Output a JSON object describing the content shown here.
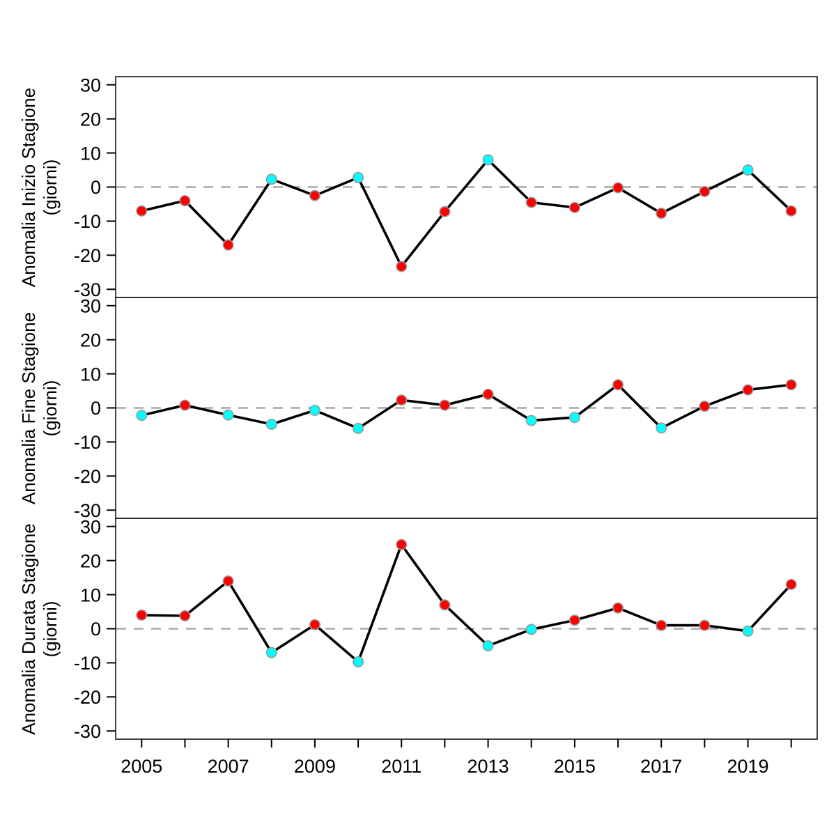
{
  "chart_data": {
    "type": "line",
    "title": "",
    "x": [
      2005,
      2006,
      2007,
      2008,
      2009,
      2010,
      2011,
      2012,
      2013,
      2014,
      2015,
      2016,
      2017,
      2018,
      2019,
      2020
    ],
    "x_axis": {
      "tick_years": [
        2005,
        2006,
        2007,
        2008,
        2009,
        2010,
        2011,
        2012,
        2013,
        2014,
        2015,
        2016,
        2017,
        2018,
        2019,
        2020
      ],
      "labeled_ticks": [
        {
          "year": 2005,
          "label": "2005"
        },
        {
          "year": 2007,
          "label": "2007"
        },
        {
          "year": 2009,
          "label": "2009"
        },
        {
          "year": 2011,
          "label": "2011"
        },
        {
          "year": 2013,
          "label": "2013"
        },
        {
          "year": 2015,
          "label": "2015"
        },
        {
          "year": 2017,
          "label": "2017"
        },
        {
          "year": 2019,
          "label": "2019"
        }
      ]
    },
    "y_axis": {
      "lim": [
        -30,
        30
      ],
      "ticks": [
        30,
        20,
        10,
        0,
        -10,
        -20,
        -30
      ],
      "tick_labels": [
        "30",
        "20",
        "10",
        "0",
        "-10",
        "-20",
        "-30"
      ]
    },
    "zero_line": {
      "style": "dashed",
      "value": 0
    },
    "legend": "none",
    "grid": "off",
    "palette": {
      "red": "#FF0000",
      "cyan": "#00FFFF",
      "line": "#000000",
      "marker_border": "#999999",
      "zero_line": "#A8A8A8",
      "axis": "#222222",
      "text": "#000000",
      "background": "#FFFFFF"
    },
    "panels": [
      {
        "ylabel": "Anomalia Inizio Stagione",
        "ylabel_sub": "(giorni)",
        "values": [
          -7,
          -4,
          -17,
          2.3,
          -2.5,
          2.8,
          -23.3,
          -7.2,
          8,
          -4.5,
          -6,
          -0.2,
          -7.7,
          -1.3,
          5,
          -7
        ],
        "colors": [
          "red",
          "red",
          "red",
          "cyan",
          "red",
          "cyan",
          "red",
          "red",
          "cyan",
          "red",
          "red",
          "red",
          "red",
          "red",
          "cyan",
          "red"
        ]
      },
      {
        "ylabel": "Anomalia Fine Stagione",
        "ylabel_sub": "(giorni)",
        "values": [
          -2.2,
          0.8,
          -2.1,
          -4.8,
          -0.7,
          -6,
          2.3,
          0.8,
          4,
          -3.7,
          -2.8,
          6.8,
          -5.9,
          0.5,
          5.3,
          6.8
        ],
        "colors": [
          "cyan",
          "red",
          "cyan",
          "cyan",
          "cyan",
          "cyan",
          "red",
          "red",
          "red",
          "cyan",
          "cyan",
          "red",
          "cyan",
          "red",
          "red",
          "red"
        ]
      },
      {
        "ylabel": "Anomalia Durata Stagione",
        "ylabel_sub": "(giorni)",
        "values": [
          4,
          3.8,
          14,
          -7,
          1.2,
          -9.7,
          24.7,
          7,
          -5,
          -0.2,
          2.5,
          6.1,
          1,
          1,
          -0.7,
          13
        ],
        "colors": [
          "red",
          "red",
          "red",
          "cyan",
          "red",
          "cyan",
          "red",
          "red",
          "cyan",
          "cyan",
          "red",
          "red",
          "red",
          "red",
          "cyan",
          "red"
        ]
      }
    ]
  }
}
